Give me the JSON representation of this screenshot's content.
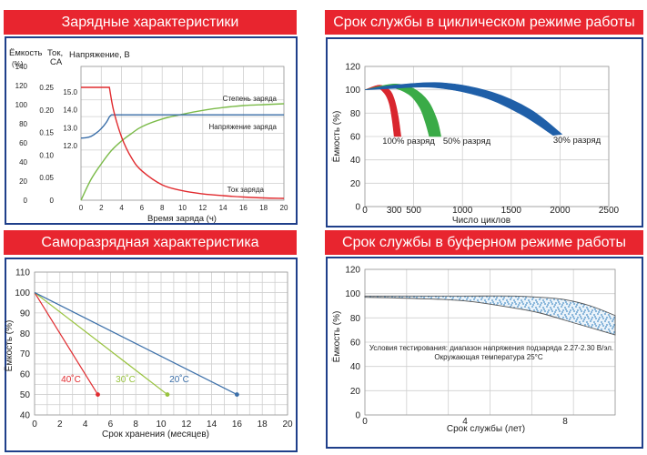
{
  "headers": {
    "charge": "Зарядные характеристики",
    "cycle": "Срок службы в циклическом режиме работы",
    "selfdischarge": "Саморазрядная характеристика",
    "float": "Срок службы в буферном режиме работы"
  },
  "chart_data": [
    {
      "id": "charge",
      "type": "line",
      "title": "Зарядные характеристики",
      "xlabel": "Время заряда (ч)",
      "xlim": [
        0,
        20
      ],
      "xticks": [
        "0",
        "2",
        "4",
        "6",
        "8",
        "10",
        "12",
        "14",
        "16",
        "18",
        "20"
      ],
      "axis_labels": {
        "capacity": "Ёмкость",
        "capacity_unit": "(%)",
        "current_line1": "Ток,",
        "current_line2": "CA",
        "voltage": "Напряжение, В"
      },
      "capacity_ticks": [
        "0",
        "20",
        "40",
        "60",
        "80",
        "100",
        "120",
        "140"
      ],
      "current_ticks": [
        "0",
        "0.05",
        "0.10",
        "0.15",
        "0.20",
        "0.25"
      ],
      "voltage_ticks": [
        "12.0",
        "13.0",
        "14.0",
        "15.0"
      ],
      "series": [
        {
          "name": "Степень заряда",
          "axis": "capacity",
          "x": [
            0,
            1,
            2,
            3,
            4,
            5,
            6,
            8,
            10,
            12,
            14,
            16,
            18,
            20
          ],
          "y": [
            0,
            22,
            38,
            52,
            62,
            70,
            77,
            85,
            90,
            94,
            97,
            99,
            100,
            101
          ]
        },
        {
          "name": "Напряжение заряда",
          "axis": "voltage",
          "x": [
            0,
            0.5,
            1,
            1.5,
            2,
            2.5,
            2.8,
            3,
            20
          ],
          "y": [
            12.42,
            12.44,
            12.52,
            12.7,
            12.95,
            13.3,
            13.6,
            13.72,
            13.72
          ]
        },
        {
          "name": "Ток заряда",
          "axis": "current",
          "x": [
            0,
            1,
            2,
            2.8,
            3.2,
            4,
            5,
            6,
            8,
            10,
            12,
            14,
            16,
            18,
            20
          ],
          "y": [
            0.25,
            0.25,
            0.25,
            0.25,
            0.2,
            0.14,
            0.093,
            0.065,
            0.034,
            0.021,
            0.014,
            0.01,
            0.007,
            0.005,
            0.004
          ]
        }
      ],
      "colors": {
        "soc": "#7cbb4a",
        "voltage": "#3a6ea8",
        "current": "#e12b2f"
      }
    },
    {
      "id": "cycle",
      "type": "area",
      "title": "Срок службы в циклическом режиме работы",
      "xlabel": "Число циклов",
      "ylabel": "Ёмкость (%)",
      "xlim": [
        0,
        2500
      ],
      "ylim": [
        0,
        120
      ],
      "xticks": [
        "0",
        "500",
        "1000",
        "1500",
        "2000",
        "2500"
      ],
      "extra_xtick": "300",
      "yticks": [
        "0",
        "20",
        "40",
        "60",
        "80",
        "100",
        "120"
      ],
      "series": [
        {
          "name": "100% разряд",
          "color": "#d9262e",
          "upper": {
            "x": [
              0,
              150,
              250,
              300,
              340,
              370
            ],
            "y": [
              100,
              104,
              100,
              92,
              78,
              60
            ]
          },
          "lower": {
            "x": [
              0,
              120,
              200,
              250,
              280,
              300
            ],
            "y": [
              100,
              102,
              97,
              88,
              74,
              60
            ]
          }
        },
        {
          "name": "50% разряд",
          "color": "#3aab47",
          "upper": {
            "x": [
              0,
              300,
              500,
              650,
              740,
              780
            ],
            "y": [
              100,
              105,
              101,
              90,
              74,
              60
            ]
          },
          "lower": {
            "x": [
              0,
              260,
              450,
              560,
              620,
              660
            ],
            "y": [
              100,
              102,
              96,
              85,
              72,
              60
            ]
          }
        },
        {
          "name": "30% разряд",
          "color": "#1f5fa8",
          "upper": {
            "x": [
              0,
              300,
              800,
              1300,
              1700,
              2020
            ],
            "y": [
              100,
              104,
              106,
              98,
              83,
              62
            ]
          },
          "lower": {
            "x": [
              0,
              250,
              700,
              1200,
              1600,
              1930
            ],
            "y": [
              100,
              101,
              102,
              94,
              79,
              61
            ]
          }
        }
      ]
    },
    {
      "id": "selfdischarge",
      "type": "line",
      "title": "Саморазрядная характеристика",
      "xlabel": "Срок хранения (месяцев)",
      "ylabel": "Ёмкость (%)",
      "xlim": [
        0,
        20
      ],
      "ylim": [
        40,
        110
      ],
      "xticks": [
        "0",
        "2",
        "4",
        "6",
        "8",
        "10",
        "12",
        "14",
        "16",
        "18",
        "20"
      ],
      "yticks": [
        "40",
        "50",
        "60",
        "70",
        "80",
        "90",
        "100",
        "110"
      ],
      "series": [
        {
          "name": "40˚C",
          "color": "#e12b2f",
          "x": [
            0,
            5
          ],
          "y": [
            100,
            50
          ]
        },
        {
          "name": "30˚C",
          "color": "#97c23c",
          "x": [
            0,
            10.5
          ],
          "y": [
            100,
            50
          ]
        },
        {
          "name": "20˚C",
          "color": "#3a6ea8",
          "x": [
            0,
            16
          ],
          "y": [
            100,
            50
          ]
        }
      ]
    },
    {
      "id": "float",
      "type": "area",
      "title": "Срок службы в буферном режиме работы",
      "xlabel": "Срок службы (лет)",
      "ylabel": "Ёмкость (%)",
      "xlim": [
        0,
        10
      ],
      "ylim": [
        0,
        120
      ],
      "xticks": [
        "0",
        "4",
        "8"
      ],
      "yticks": [
        "0",
        "20",
        "40",
        "60",
        "80",
        "100",
        "120"
      ],
      "note_line1": "Условия тестирования: диапазон напряжения подзаряда 2.27-2.30 В/эл.",
      "note_line2": "Окружающая температура 25°C",
      "band": {
        "color": "#4a90c8",
        "upper": {
          "x": [
            0,
            2,
            4,
            6,
            7,
            8,
            9,
            10
          ],
          "y": [
            98,
            98,
            98,
            98,
            97,
            95,
            90,
            82
          ]
        },
        "lower": {
          "x": [
            0,
            2,
            4,
            6,
            7,
            8,
            9,
            10
          ],
          "y": [
            97,
            96,
            94,
            88,
            84,
            78,
            72,
            66
          ]
        }
      }
    }
  ]
}
